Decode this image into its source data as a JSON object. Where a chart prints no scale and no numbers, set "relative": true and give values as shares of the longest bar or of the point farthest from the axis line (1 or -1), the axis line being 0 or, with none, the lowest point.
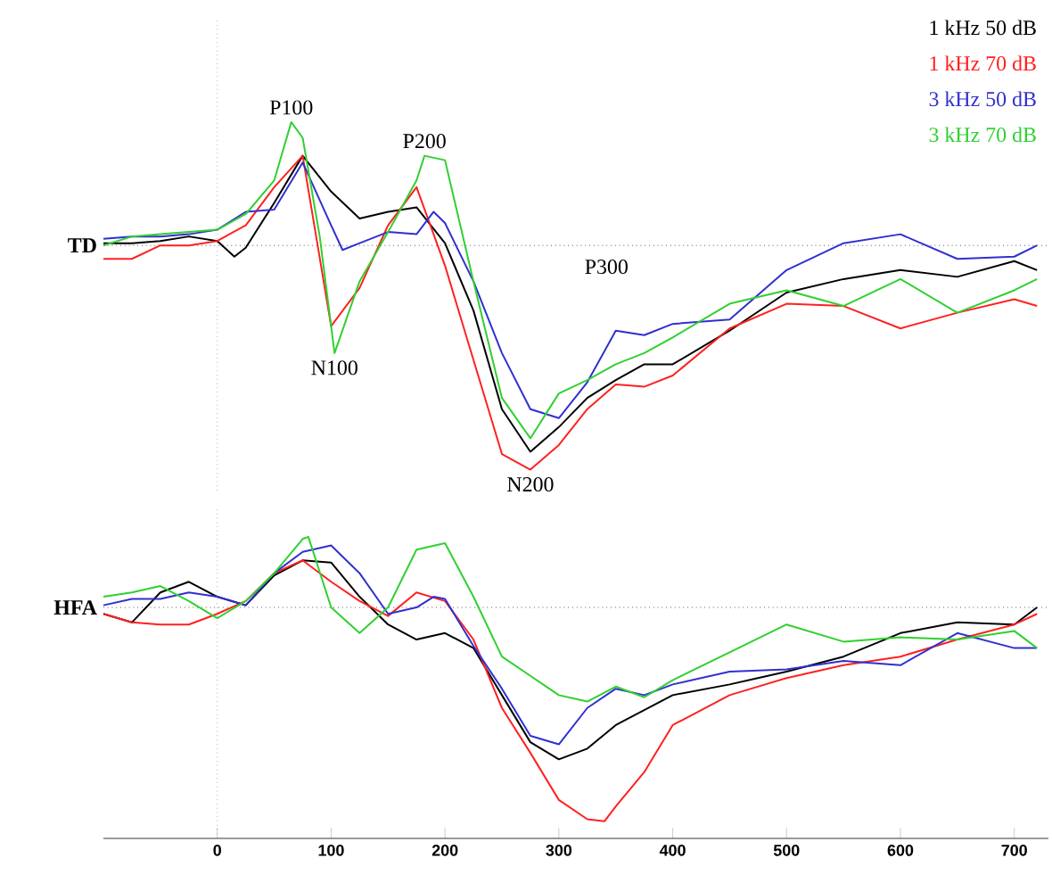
{
  "chart_data": [
    {
      "type": "line",
      "ylabel": "TD",
      "relative": true,
      "xlim": [
        -100,
        730
      ],
      "tick_labels": false,
      "grid": false,
      "series": [
        {
          "name": "1 kHz 50 dB",
          "color": "#000000",
          "x": [
            -100,
            -75,
            -50,
            -25,
            0,
            15,
            25,
            50,
            75,
            100,
            125,
            150,
            175,
            200,
            225,
            250,
            275,
            300,
            325,
            350,
            375,
            400,
            450,
            500,
            550,
            600,
            650,
            700,
            720
          ],
          "values": [
            0.01,
            0.01,
            0.02,
            0.04,
            0.02,
            -0.05,
            -0.01,
            0.19,
            0.4,
            0.24,
            0.12,
            0.15,
            0.17,
            0.01,
            -0.29,
            -0.73,
            -0.92,
            -0.81,
            -0.68,
            -0.6,
            -0.53,
            -0.53,
            -0.38,
            -0.21,
            -0.15,
            -0.11,
            -0.14,
            -0.07,
            -0.11
          ]
        },
        {
          "name": "1 kHz 70 dB",
          "color": "#ff2020",
          "x": [
            -100,
            -75,
            -50,
            -25,
            0,
            25,
            50,
            75,
            100,
            125,
            150,
            175,
            200,
            225,
            250,
            275,
            300,
            325,
            350,
            375,
            400,
            450,
            500,
            550,
            600,
            650,
            700,
            720
          ],
          "values": [
            -0.06,
            -0.06,
            0,
            0,
            0.02,
            0.09,
            0.26,
            0.4,
            -0.36,
            -0.19,
            0.09,
            0.26,
            -0.09,
            -0.51,
            -0.93,
            -1.0,
            -0.89,
            -0.73,
            -0.62,
            -0.63,
            -0.58,
            -0.37,
            -0.26,
            -0.27,
            -0.37,
            -0.3,
            -0.24,
            -0.27
          ]
        },
        {
          "name": "3 kHz 50 dB",
          "color": "#3030d0",
          "x": [
            -100,
            -75,
            -50,
            -25,
            0,
            25,
            50,
            75,
            100,
            110,
            125,
            150,
            175,
            190,
            200,
            225,
            250,
            275,
            300,
            325,
            350,
            375,
            400,
            450,
            500,
            550,
            600,
            650,
            700,
            720
          ],
          "values": [
            0.03,
            0.04,
            0.04,
            0.05,
            0.07,
            0.15,
            0.16,
            0.37,
            0.09,
            -0.02,
            0.01,
            0.06,
            0.05,
            0.15,
            0.1,
            -0.16,
            -0.48,
            -0.73,
            -0.77,
            -0.61,
            -0.38,
            -0.4,
            -0.35,
            -0.33,
            -0.11,
            0.01,
            0.05,
            -0.06,
            -0.05,
            0
          ]
        },
        {
          "name": "3 kHz 70 dB",
          "color": "#30d030",
          "x": [
            -100,
            -75,
            -50,
            -25,
            0,
            25,
            50,
            65,
            75,
            90,
            103,
            125,
            150,
            175,
            182,
            200,
            225,
            250,
            275,
            300,
            325,
            350,
            375,
            400,
            450,
            500,
            550,
            600,
            650,
            700,
            720
          ],
          "values": [
            0,
            0.04,
            0.05,
            0.06,
            0.07,
            0.14,
            0.29,
            0.55,
            0.48,
            0.04,
            -0.48,
            -0.16,
            0.06,
            0.29,
            0.4,
            0.38,
            -0.16,
            -0.68,
            -0.86,
            -0.66,
            -0.6,
            -0.53,
            -0.48,
            -0.41,
            -0.26,
            -0.2,
            -0.27,
            -0.15,
            -0.3,
            -0.2,
            -0.15
          ]
        }
      ],
      "ref_lines": [
        {
          "axis": "y",
          "value": 0,
          "color": "#000000",
          "line_style": "dotted"
        },
        {
          "axis": "x",
          "value": 0,
          "color": "#808080",
          "line_style": "dotted"
        }
      ],
      "annotations": [
        {
          "text": "P100",
          "x": 65,
          "y": 0.55
        },
        {
          "text": "N100",
          "x": 103,
          "y": -0.48
        },
        {
          "text": "P200",
          "x": 182,
          "y": 0.4
        },
        "P300",
        {
          "text": "N200",
          "x": 275,
          "y": -1.0
        }
      ]
    },
    {
      "type": "line",
      "ylabel": "HFA",
      "relative": true,
      "xlim": [
        -100,
        730
      ],
      "xticks": [
        0,
        100,
        200,
        300,
        400,
        500,
        600,
        700
      ],
      "tick_labels": "x",
      "grid": false,
      "series": [
        {
          "color": "#000000",
          "x": [
            -100,
            -75,
            -50,
            -25,
            0,
            25,
            50,
            75,
            100,
            125,
            150,
            175,
            200,
            225,
            250,
            275,
            300,
            325,
            350,
            375,
            400,
            450,
            500,
            550,
            600,
            650,
            700,
            720
          ],
          "values": [
            -0.03,
            -0.07,
            0.07,
            0.12,
            0.05,
            0.01,
            0.15,
            0.22,
            0.21,
            0.05,
            -0.08,
            -0.15,
            -0.12,
            -0.19,
            -0.41,
            -0.63,
            -0.71,
            -0.66,
            -0.55,
            -0.48,
            -0.41,
            -0.36,
            -0.3,
            -0.23,
            -0.12,
            -0.07,
            -0.08,
            0
          ]
        },
        {
          "color": "#ff2020",
          "x": [
            -100,
            -75,
            -50,
            -25,
            0,
            25,
            50,
            75,
            100,
            125,
            150,
            175,
            200,
            225,
            250,
            275,
            300,
            325,
            340,
            350,
            375,
            400,
            450,
            500,
            550,
            600,
            650,
            700,
            720
          ],
          "values": [
            -0.03,
            -0.07,
            -0.08,
            -0.08,
            -0.03,
            0.03,
            0.16,
            0.22,
            0.12,
            0.03,
            -0.04,
            0.07,
            0.03,
            -0.15,
            -0.47,
            -0.68,
            -0.9,
            -0.99,
            -1.0,
            -0.93,
            -0.77,
            -0.55,
            -0.41,
            -0.33,
            -0.27,
            -0.23,
            -0.15,
            -0.08,
            -0.03
          ]
        },
        {
          "color": "#3030d0",
          "x": [
            -100,
            -75,
            -50,
            -25,
            0,
            25,
            50,
            75,
            100,
            125,
            150,
            175,
            190,
            200,
            225,
            250,
            275,
            300,
            325,
            350,
            375,
            400,
            450,
            500,
            550,
            600,
            650,
            700,
            720
          ],
          "values": [
            0.01,
            0.04,
            0.04,
            0.07,
            0.05,
            0.01,
            0.16,
            0.26,
            0.29,
            0.16,
            -0.03,
            0,
            0.05,
            0.04,
            -0.18,
            -0.38,
            -0.6,
            -0.64,
            -0.47,
            -0.38,
            -0.41,
            -0.36,
            -0.3,
            -0.29,
            -0.25,
            -0.27,
            -0.12,
            -0.19,
            -0.19
          ]
        },
        {
          "color": "#30d030",
          "x": [
            -100,
            -75,
            -50,
            -25,
            0,
            25,
            50,
            75,
            80,
            100,
            125,
            150,
            175,
            200,
            225,
            250,
            275,
            300,
            325,
            350,
            375,
            400,
            450,
            500,
            550,
            600,
            650,
            700,
            720
          ],
          "values": [
            0.05,
            0.07,
            0.1,
            0.03,
            -0.05,
            0.03,
            0.16,
            0.32,
            0.33,
            0,
            -0.12,
            0,
            0.27,
            0.3,
            0.05,
            -0.23,
            -0.32,
            -0.41,
            -0.44,
            -0.37,
            -0.42,
            -0.34,
            -0.21,
            -0.08,
            -0.16,
            -0.14,
            -0.15,
            -0.11,
            -0.19
          ]
        }
      ],
      "ref_lines": [
        {
          "axis": "y",
          "value": 0,
          "color": "#000000",
          "line_style": "dotted"
        },
        {
          "axis": "x",
          "value": 0,
          "color": "#808080",
          "line_style": "dotted"
        }
      ]
    }
  ]
}
